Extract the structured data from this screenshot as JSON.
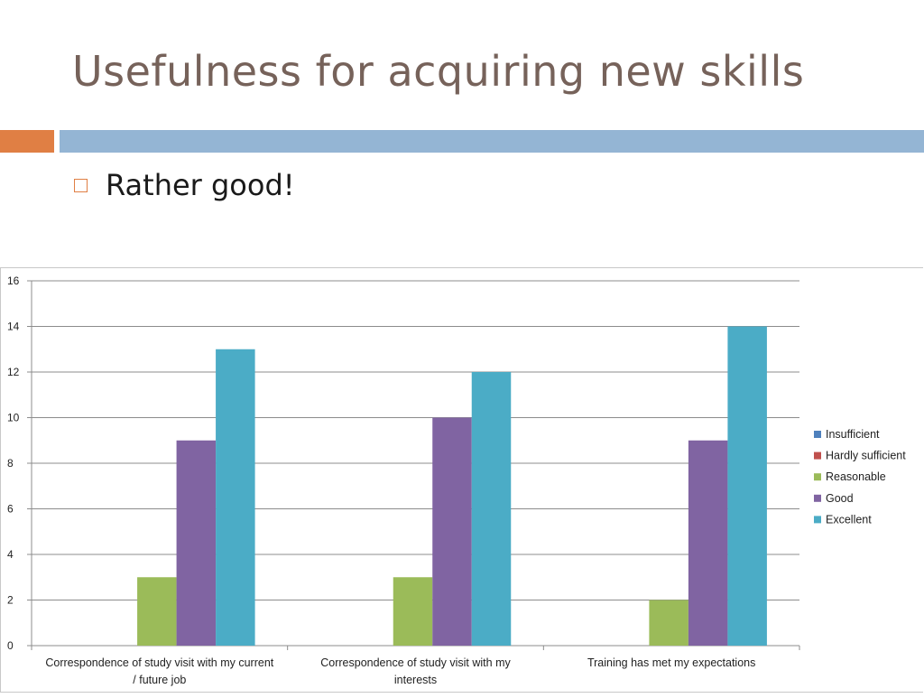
{
  "slide": {
    "title": "Usefulness for acquiring new skills",
    "bullet": "Rather good!"
  },
  "colors": {
    "title": "#76625a",
    "accent_orange": "#e07f44",
    "accent_blue": "#94b5d4"
  },
  "chart_data": {
    "type": "bar",
    "categories": [
      [
        "Correspondence of study visit with my current",
        "/ future job"
      ],
      [
        "Correspondence of study visit with my",
        "interests"
      ],
      [
        "Training has met my expectations"
      ]
    ],
    "series": [
      {
        "name": "Insufficient",
        "color": "#4f81bd",
        "values": [
          0,
          0,
          0
        ]
      },
      {
        "name": "Hardly sufficient",
        "color": "#c0504d",
        "values": [
          0,
          0,
          0
        ]
      },
      {
        "name": "Reasonable",
        "color": "#9bbb59",
        "values": [
          3,
          3,
          2
        ]
      },
      {
        "name": "Good",
        "color": "#8064a2",
        "values": [
          9,
          10,
          9
        ]
      },
      {
        "name": "Excellent",
        "color": "#4bacc6",
        "values": [
          13,
          12,
          14
        ]
      }
    ],
    "ylim": [
      0,
      16
    ],
    "yticks": [
      0,
      2,
      4,
      6,
      8,
      10,
      12,
      14,
      16
    ],
    "grid": true,
    "legend_position": "right"
  }
}
